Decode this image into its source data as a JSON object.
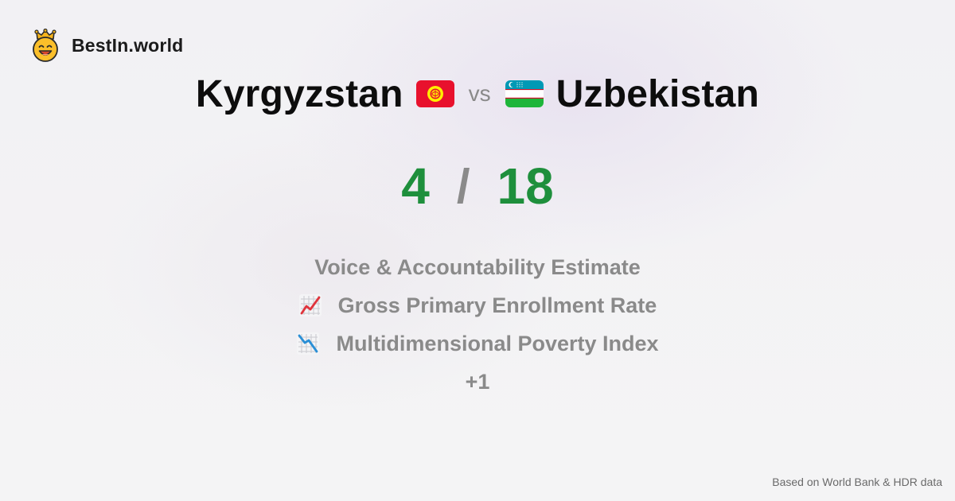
{
  "brand": {
    "name": "BestIn.world",
    "logo_icon": "crowned-smiley-icon"
  },
  "comparison": {
    "country_a": {
      "name": "Kyrgyzstan",
      "flag_icon": "kyrgyzstan-flag-icon",
      "flag_color": "#e8112d"
    },
    "vs_label": "vs",
    "country_b": {
      "name": "Uzbekistan",
      "flag_icon": "uzbekistan-flag-icon",
      "flag_colors": [
        "#0099b5",
        "#ffffff",
        "#1eb53a"
      ]
    },
    "score_a": "4",
    "separator": "/",
    "score_b": "18",
    "score_color": "#1e8f3c"
  },
  "metrics": [
    {
      "label": "Voice & Accountability Estimate",
      "icon": ""
    },
    {
      "label": "Gross Primary Enrollment Rate",
      "icon": "chart-increasing-icon"
    },
    {
      "label": "Multidimensional Poverty Index",
      "icon": "chart-decreasing-icon"
    }
  ],
  "more_label": "+1",
  "footer": {
    "source_text": "Based on World Bank & HDR data"
  }
}
